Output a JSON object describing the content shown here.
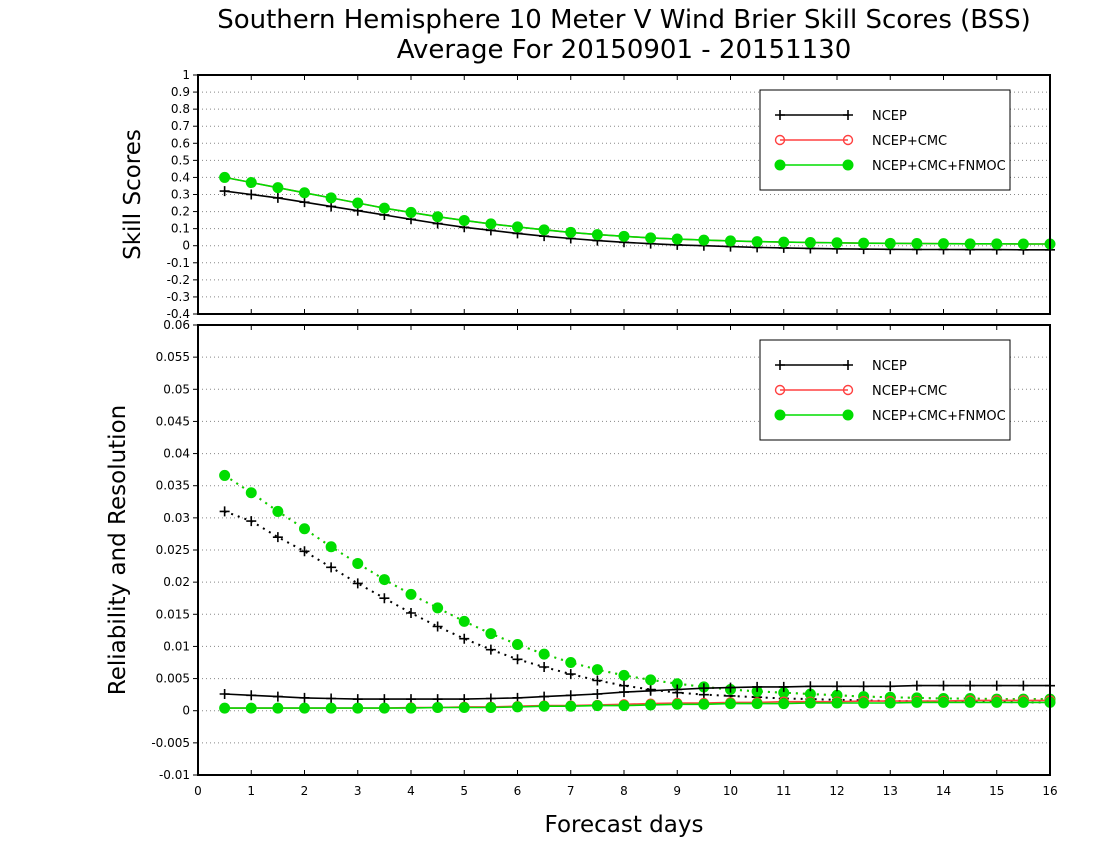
{
  "title_line1": "Southern Hemisphere 10 Meter V Wind Brier Skill Scores (BSS)",
  "title_line2": "Average For 20150901 - 20151130",
  "xlabel": "Forecast days",
  "colors": {
    "NCEP": "#000000",
    "NCEP+CMC": "#ff4040",
    "NCEP+CMC+FNMOC": "#00dd00"
  },
  "chart_data": [
    {
      "type": "line",
      "ylabel": "Skill Scores",
      "xlim": [
        0,
        16
      ],
      "ylim": [
        -0.4,
        1.0
      ],
      "xticks": [
        0,
        1,
        2,
        3,
        4,
        5,
        6,
        7,
        8,
        9,
        10,
        11,
        12,
        13,
        14,
        15,
        16
      ],
      "yticks": [
        -0.4,
        -0.3,
        -0.2,
        -0.1,
        0,
        0.1,
        0.2,
        0.3,
        0.4,
        0.5,
        0.6,
        0.7,
        0.8,
        0.9,
        1
      ],
      "ytick_labels": [
        "-0.4",
        "-0.3",
        "-0.2",
        "-0.1",
        "0",
        "0.1",
        "0.2",
        "0.3",
        "0.4",
        "0.5",
        "0.6",
        "0.7",
        "0.8",
        "0.9",
        "1"
      ],
      "grid": true,
      "legend_position": "top-right",
      "x": [
        0.5,
        1,
        1.5,
        2,
        2.5,
        3,
        3.5,
        4,
        4.5,
        5,
        5.5,
        6,
        6.5,
        7,
        7.5,
        8,
        8.5,
        9,
        9.5,
        10,
        10.5,
        11,
        11.5,
        12,
        12.5,
        13,
        13.5,
        14,
        14.5,
        15,
        15.5,
        16
      ],
      "series": [
        {
          "name": "NCEP",
          "style": "solid",
          "marker": "plus",
          "color": "#000000",
          "values": [
            0.32,
            0.3,
            0.28,
            0.255,
            0.23,
            0.205,
            0.18,
            0.155,
            0.13,
            0.108,
            0.09,
            0.072,
            0.056,
            0.042,
            0.03,
            0.02,
            0.012,
            0.005,
            0.0,
            -0.005,
            -0.01,
            -0.013,
            -0.016,
            -0.018,
            -0.02,
            -0.021,
            -0.022,
            -0.022,
            -0.023,
            -0.023,
            -0.024,
            -0.024
          ]
        },
        {
          "name": "NCEP+CMC",
          "style": "solid",
          "marker": "circle-open",
          "color": "#ff4040",
          "values": [
            0.4,
            0.37,
            0.34,
            0.31,
            0.28,
            0.25,
            0.22,
            0.195,
            0.17,
            0.148,
            0.128,
            0.11,
            0.093,
            0.078,
            0.065,
            0.055,
            0.046,
            0.039,
            0.033,
            0.028,
            0.024,
            0.021,
            0.019,
            0.017,
            0.015,
            0.014,
            0.013,
            0.012,
            0.011,
            0.011,
            0.01,
            0.01
          ]
        },
        {
          "name": "NCEP+CMC+FNMOC",
          "style": "solid",
          "marker": "circle-filled",
          "color": "#00dd00",
          "values": [
            0.4,
            0.37,
            0.34,
            0.31,
            0.28,
            0.25,
            0.22,
            0.195,
            0.17,
            0.148,
            0.128,
            0.11,
            0.093,
            0.078,
            0.065,
            0.055,
            0.046,
            0.039,
            0.033,
            0.028,
            0.024,
            0.021,
            0.019,
            0.017,
            0.015,
            0.014,
            0.013,
            0.012,
            0.011,
            0.011,
            0.01,
            0.01
          ]
        }
      ]
    },
    {
      "type": "line",
      "ylabel": "Reliability and Resolution",
      "xlim": [
        0,
        16
      ],
      "ylim": [
        -0.01,
        0.06
      ],
      "xticks": [
        0,
        1,
        2,
        3,
        4,
        5,
        6,
        7,
        8,
        9,
        10,
        11,
        12,
        13,
        14,
        15,
        16
      ],
      "yticks": [
        -0.01,
        -0.005,
        0,
        0.005,
        0.01,
        0.015,
        0.02,
        0.025,
        0.03,
        0.035,
        0.04,
        0.045,
        0.05,
        0.055,
        0.06
      ],
      "ytick_labels": [
        "-0.01",
        "-0.005",
        "0",
        "0.005",
        "0.01",
        "0.015",
        "0.02",
        "0.025",
        "0.03",
        "0.035",
        "0.04",
        "0.045",
        "0.05",
        "0.055",
        "0.06"
      ],
      "grid": true,
      "legend_position": "top-right",
      "x": [
        0.5,
        1,
        1.5,
        2,
        2.5,
        3,
        3.5,
        4,
        4.5,
        5,
        5.5,
        6,
        6.5,
        7,
        7.5,
        8,
        8.5,
        9,
        9.5,
        10,
        10.5,
        11,
        11.5,
        12,
        12.5,
        13,
        13.5,
        14,
        14.5,
        15,
        15.5,
        16
      ],
      "series": [
        {
          "name": "NCEP",
          "metric": "resolution",
          "style": "dotted",
          "marker": "plus",
          "color": "#000000",
          "values": [
            0.031,
            0.0295,
            0.027,
            0.0248,
            0.0223,
            0.0198,
            0.0175,
            0.0152,
            0.0131,
            0.0112,
            0.0095,
            0.008,
            0.0068,
            0.0057,
            0.0047,
            0.0039,
            0.0033,
            0.0028,
            0.0025,
            0.0023,
            0.0021,
            0.0019,
            0.0018,
            0.0017,
            0.0016,
            0.0015,
            0.0015,
            0.0014,
            0.0014,
            0.0014,
            0.0013,
            0.0013
          ]
        },
        {
          "name": "NCEP+CMC",
          "metric": "resolution",
          "style": "dotted",
          "marker": "circle-open",
          "color": "#ff4040",
          "values": [
            0.0366,
            0.0339,
            0.031,
            0.0283,
            0.0255,
            0.0229,
            0.0204,
            0.0181,
            0.016,
            0.0139,
            0.012,
            0.0103,
            0.0088,
            0.0075,
            0.0064,
            0.0055,
            0.0048,
            0.0042,
            0.0037,
            0.0033,
            0.003,
            0.0028,
            0.0026,
            0.0024,
            0.0022,
            0.0021,
            0.002,
            0.0019,
            0.0019,
            0.0018,
            0.0018,
            0.0018
          ]
        },
        {
          "name": "NCEP+CMC+FNMOC",
          "metric": "resolution",
          "style": "dotted",
          "marker": "circle-filled",
          "color": "#00dd00",
          "values": [
            0.0366,
            0.0339,
            0.031,
            0.0283,
            0.0255,
            0.0229,
            0.0204,
            0.0181,
            0.016,
            0.0139,
            0.012,
            0.0103,
            0.0088,
            0.0075,
            0.0064,
            0.0055,
            0.0048,
            0.0042,
            0.0037,
            0.0033,
            0.003,
            0.0028,
            0.0026,
            0.0024,
            0.0022,
            0.0021,
            0.002,
            0.0019,
            0.0019,
            0.0018,
            0.0018,
            0.0018
          ]
        },
        {
          "name": "NCEP",
          "metric": "reliability",
          "style": "solid",
          "marker": "plus",
          "color": "#000000",
          "values": [
            0.0026,
            0.0024,
            0.0022,
            0.002,
            0.0019,
            0.0018,
            0.0018,
            0.0018,
            0.0018,
            0.0018,
            0.0019,
            0.002,
            0.0022,
            0.0024,
            0.0026,
            0.0029,
            0.0031,
            0.0033,
            0.0035,
            0.0036,
            0.0037,
            0.0037,
            0.0038,
            0.0038,
            0.0038,
            0.0038,
            0.0039,
            0.0039,
            0.0039,
            0.0039,
            0.0039,
            0.0039
          ]
        },
        {
          "name": "NCEP+CMC",
          "metric": "reliability",
          "style": "solid",
          "marker": "circle-open",
          "color": "#ff4040",
          "values": [
            0.0004,
            0.0004,
            0.0004,
            0.0004,
            0.0004,
            0.0004,
            0.0004,
            0.0005,
            0.0005,
            0.0006,
            0.0006,
            0.0007,
            0.0008,
            0.0008,
            0.0009,
            0.001,
            0.0011,
            0.0012,
            0.0012,
            0.0013,
            0.0013,
            0.0014,
            0.0014,
            0.0014,
            0.0015,
            0.0015,
            0.0015,
            0.0015,
            0.0016,
            0.0016,
            0.0016,
            0.0016
          ]
        },
        {
          "name": "NCEP+CMC+FNMOC",
          "metric": "reliability",
          "style": "solid",
          "marker": "circle-filled",
          "color": "#00dd00",
          "values": [
            0.0004,
            0.0004,
            0.0004,
            0.0004,
            0.0004,
            0.0004,
            0.0004,
            0.0004,
            0.0005,
            0.0005,
            0.0005,
            0.0006,
            0.0007,
            0.0007,
            0.0008,
            0.0008,
            0.0009,
            0.001,
            0.001,
            0.0011,
            0.0011,
            0.0011,
            0.0012,
            0.0012,
            0.0012,
            0.0012,
            0.0013,
            0.0013,
            0.0013,
            0.0013,
            0.0013,
            0.0013
          ]
        }
      ]
    }
  ]
}
